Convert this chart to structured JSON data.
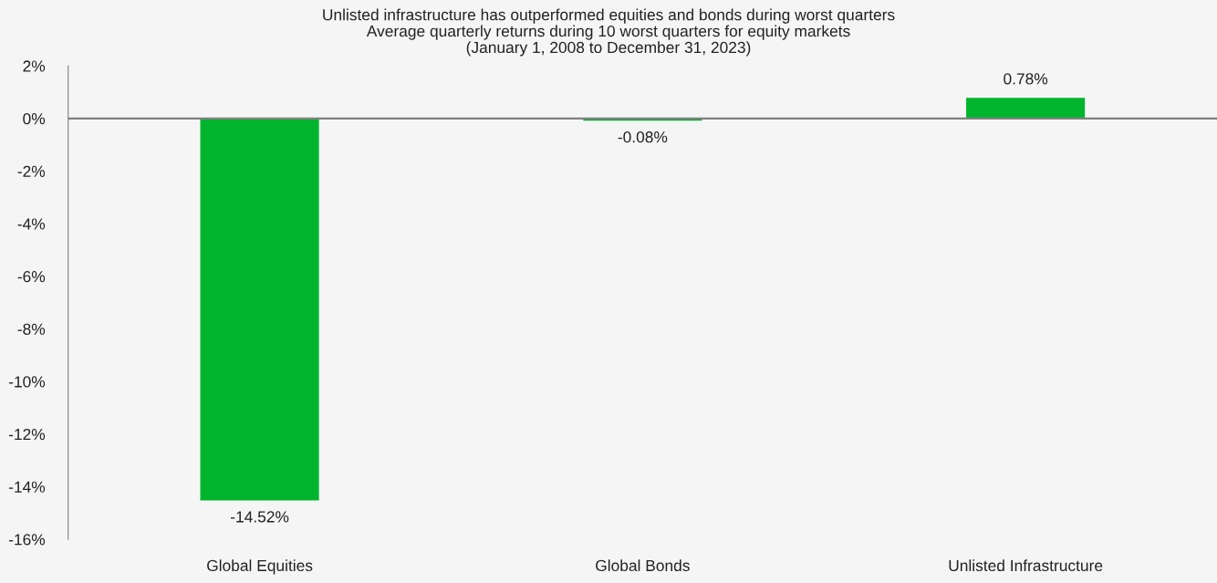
{
  "chart_data": {
    "type": "bar",
    "title": "Unlisted infrastructure has outperformed equities and bonds during worst quarters",
    "subtitle": "Average quarterly returns during 10 worst quarters for equity markets",
    "annotations": [
      "(January 1, 2008 to December 31, 2023)"
    ],
    "categories": [
      "Global Equities",
      "Global Bonds",
      "Unlisted Infrastructure"
    ],
    "values": [
      -14.52,
      -0.08,
      0.78
    ],
    "color": "#00b52e",
    "value_labels": [
      "-14.52%",
      "-0.08%",
      "0.78%"
    ],
    "ylim": [
      -16,
      2
    ],
    "yticks": [
      {
        "value": -16,
        "label": "-16%"
      },
      {
        "value": -14,
        "label": "-14%"
      },
      {
        "value": -12,
        "label": "-12%"
      },
      {
        "value": -10,
        "label": "-10%"
      },
      {
        "value": -8,
        "label": "-8%"
      },
      {
        "value": -6,
        "label": "-6%"
      },
      {
        "value": -4,
        "label": "-4%"
      },
      {
        "value": -2,
        "label": "-2%"
      },
      {
        "value": 0,
        "label": "0%"
      },
      {
        "value": 2,
        "label": "2%"
      }
    ],
    "ref_lines": [
      {
        "axis": "y",
        "value": 0,
        "color": "#808080"
      }
    ],
    "grid": false,
    "legend": false
  }
}
